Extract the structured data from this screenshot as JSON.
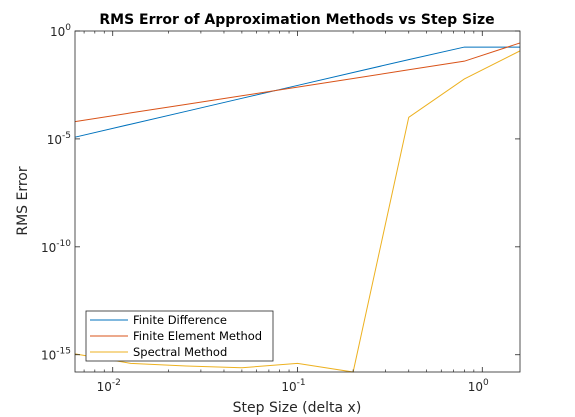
{
  "chart_data": {
    "type": "line",
    "title": "RMS Error of Approximation Methods vs Step Size",
    "xlabel": "Step Size (delta x)",
    "ylabel": "RMS Error",
    "xscale": "log",
    "yscale": "log",
    "xlim": [
      0.00625,
      1.6
    ],
    "ylim_exponent": [
      -15.8,
      0
    ],
    "grid": false,
    "legend_position": "bottom-left",
    "x_ticks": [
      {
        "base": "10",
        "exp": "-2",
        "value": 0.01
      },
      {
        "base": "10",
        "exp": "-1",
        "value": 0.1
      },
      {
        "base": "10",
        "exp": "0",
        "value": 1
      }
    ],
    "y_ticks": [
      {
        "base": "10",
        "exp": "0",
        "value": 1
      },
      {
        "base": "10",
        "exp": "-5",
        "value": 1e-05
      },
      {
        "base": "10",
        "exp": "-10",
        "value": 1e-10
      },
      {
        "base": "10",
        "exp": "-15",
        "value": 1e-15
      }
    ],
    "x": [
      0.00625,
      0.0125,
      0.025,
      0.05,
      0.1,
      0.2,
      0.4,
      0.8,
      1.6
    ],
    "series": [
      {
        "name": "Finite Difference",
        "color": "#0072BD",
        "values": [
          1.2e-05,
          4.8e-05,
          0.00019,
          0.00076,
          0.003,
          0.012,
          0.047,
          0.18,
          0.18
        ]
      },
      {
        "name": "Finite Element Method",
        "color": "#D95319",
        "values": [
          6.3e-05,
          0.00016,
          0.0004,
          0.001,
          0.0025,
          0.0063,
          0.016,
          0.04,
          0.28
        ]
      },
      {
        "name": "Spectral Method",
        "color": "#EDB120",
        "values": [
          1.1e-15,
          4e-16,
          3e-16,
          2.5e-16,
          4e-16,
          1e-16,
          0.0001,
          0.006,
          0.12
        ]
      }
    ]
  }
}
